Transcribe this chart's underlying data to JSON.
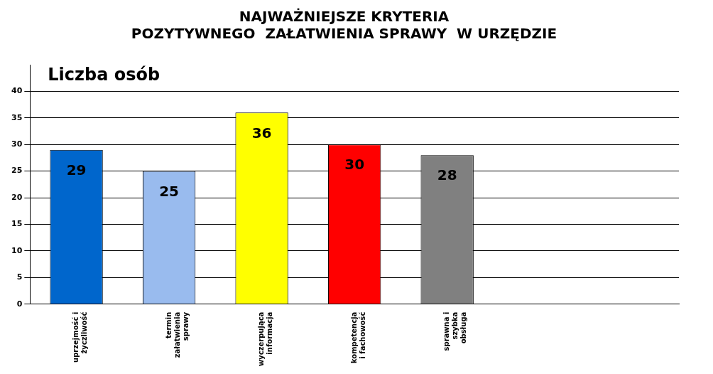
{
  "chart_data": {
    "type": "bar",
    "title": [
      "NAJWAŻNIEJSZE KRYTERIA",
      "POZYTYWNEGO  ZAŁATWIENIA SPRAWY  W URZĘDZIE"
    ],
    "annotations": [
      "Liczba osób"
    ],
    "categories": [
      "uprzejmość i\nżyczliwość",
      "termin\nzałatwienia\nsprawy",
      "wyczerpująca\ninformacja",
      "kompetencja\ni fachowość",
      "sprawna i\nszybka\nobsługa",
      null,
      null
    ],
    "values": [
      29,
      25,
      36,
      30,
      28,
      null,
      null
    ],
    "colors": [
      "#0066cc",
      "#99bbee",
      "#ffff00",
      "#ff0000",
      "#808080",
      "#808080",
      "#808080"
    ],
    "ylim": [
      0,
      45
    ],
    "yticks": [
      0,
      5,
      10,
      15,
      20,
      25,
      30,
      35,
      40
    ],
    "grid": "y",
    "legend": false,
    "data_labels": true
  }
}
